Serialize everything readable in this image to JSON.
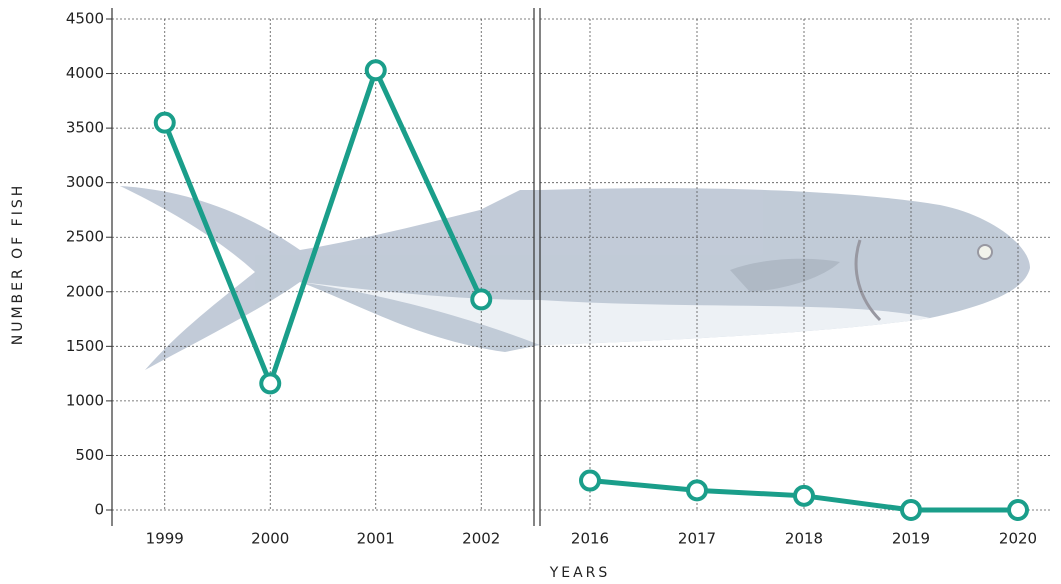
{
  "chart_data": [
    {
      "type": "line",
      "ylabel": "NUMBER OF FISH",
      "xlabel": "YEARS",
      "categories": [
        "1999",
        "2000",
        "2001",
        "2002"
      ],
      "series": [
        {
          "color": "#1a9e8a",
          "values": [
            3550,
            1160,
            4030,
            1930
          ]
        }
      ],
      "ylim": [
        0,
        4500
      ],
      "yticks": [
        0,
        500,
        1000,
        1500,
        2000,
        2500,
        3000,
        3500,
        4000,
        4500
      ],
      "grid": true
    },
    {
      "type": "line",
      "categories": [
        "2016",
        "2017",
        "2018",
        "2019",
        "2020"
      ],
      "series": [
        {
          "color": "#1a9e8a",
          "values": [
            270,
            180,
            130,
            0,
            0
          ]
        }
      ],
      "ylim": [
        0,
        4500
      ],
      "yticks": [
        0,
        500,
        1000,
        1500,
        2000,
        2500,
        3000,
        3500,
        4000,
        4500
      ],
      "grid": true
    }
  ]
}
